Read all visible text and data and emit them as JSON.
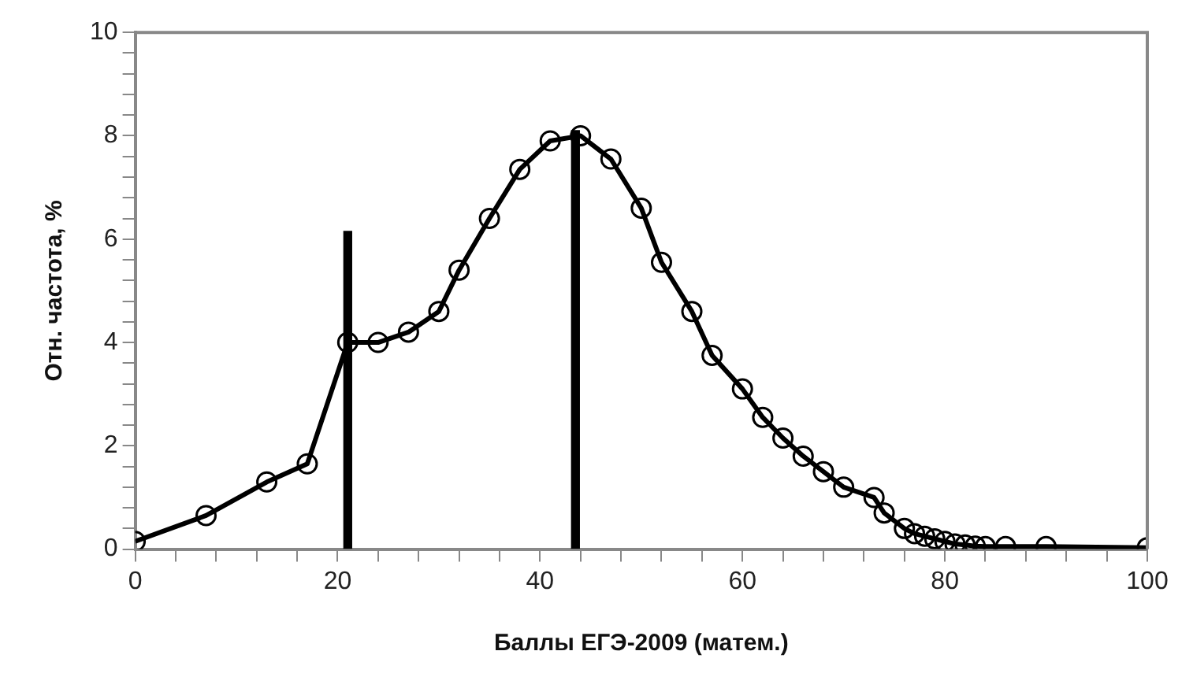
{
  "chart_data": {
    "type": "line",
    "xlabel": "Баллы ЕГЭ-2009 (матем.)",
    "ylabel": "Отн. частота, %",
    "xlim": [
      0,
      100
    ],
    "xticks": [
      0,
      {
        "value": 4,
        "label": null
      },
      {
        "value": 8,
        "label": null
      },
      {
        "value": 12,
        "label": null
      },
      {
        "value": 16,
        "label": null
      },
      20,
      {
        "value": 24,
        "label": null
      },
      {
        "value": 28,
        "label": null
      },
      {
        "value": 32,
        "label": null
      },
      {
        "value": 36,
        "label": null
      },
      40,
      {
        "value": 44,
        "label": null
      },
      {
        "value": 48,
        "label": null
      },
      {
        "value": 52,
        "label": null
      },
      {
        "value": 56,
        "label": null
      },
      60,
      {
        "value": 64,
        "label": null
      },
      {
        "value": 68,
        "label": null
      },
      {
        "value": 72,
        "label": null
      },
      {
        "value": 76,
        "label": null
      },
      80,
      {
        "value": 84,
        "label": null
      },
      {
        "value": 88,
        "label": null
      },
      {
        "value": 92,
        "label": null
      },
      {
        "value": 96,
        "label": null
      },
      100
    ],
    "ylim": [
      0,
      10
    ],
    "yticks": [
      0,
      {
        "value": 0.4,
        "label": null
      },
      {
        "value": 0.8,
        "label": null
      },
      {
        "value": 1.2,
        "label": null
      },
      {
        "value": 1.6,
        "label": null
      },
      2,
      {
        "value": 2.4,
        "label": null
      },
      {
        "value": 2.8,
        "label": null
      },
      {
        "value": 3.2,
        "label": null
      },
      {
        "value": 3.6,
        "label": null
      },
      4,
      {
        "value": 4.4,
        "label": null
      },
      {
        "value": 4.8,
        "label": null
      },
      {
        "value": 5.2,
        "label": null
      },
      {
        "value": 5.6,
        "label": null
      },
      6,
      {
        "value": 6.4,
        "label": null
      },
      {
        "value": 6.8,
        "label": null
      },
      {
        "value": 7.2,
        "label": null
      },
      {
        "value": 7.6,
        "label": null
      },
      8,
      {
        "value": 8.4,
        "label": null
      },
      {
        "value": 8.8,
        "label": null
      },
      {
        "value": 9.2,
        "label": null
      },
      {
        "value": 9.6,
        "label": null
      },
      10
    ],
    "grid": false,
    "legend": false,
    "marker": "circle",
    "line_style": "solid",
    "series": [
      {
        "color": "#000000",
        "x": [
          0,
          7,
          13,
          17,
          21,
          24,
          27,
          30,
          32,
          35,
          38,
          41,
          44,
          47,
          50,
          52,
          55,
          57,
          60,
          62,
          64,
          66,
          68,
          70,
          73,
          74,
          76,
          77,
          78,
          79,
          80,
          81,
          82,
          83,
          84,
          86,
          90,
          100
        ],
        "values": [
          0.15,
          0.65,
          1.3,
          1.65,
          4.0,
          4.0,
          4.2,
          4.6,
          5.4,
          6.4,
          7.35,
          7.9,
          8.0,
          7.55,
          6.6,
          5.55,
          4.6,
          3.75,
          3.1,
          2.55,
          2.15,
          1.8,
          1.5,
          1.2,
          1.0,
          0.7,
          0.4,
          0.3,
          0.25,
          0.2,
          0.15,
          0.1,
          0.08,
          0.06,
          0.05,
          0.05,
          0.05,
          0.03
        ]
      },
      {
        "type": "bar",
        "color": "#000000",
        "x": [
          21,
          43.5
        ],
        "values": [
          6.15,
          8.1
        ]
      }
    ]
  }
}
